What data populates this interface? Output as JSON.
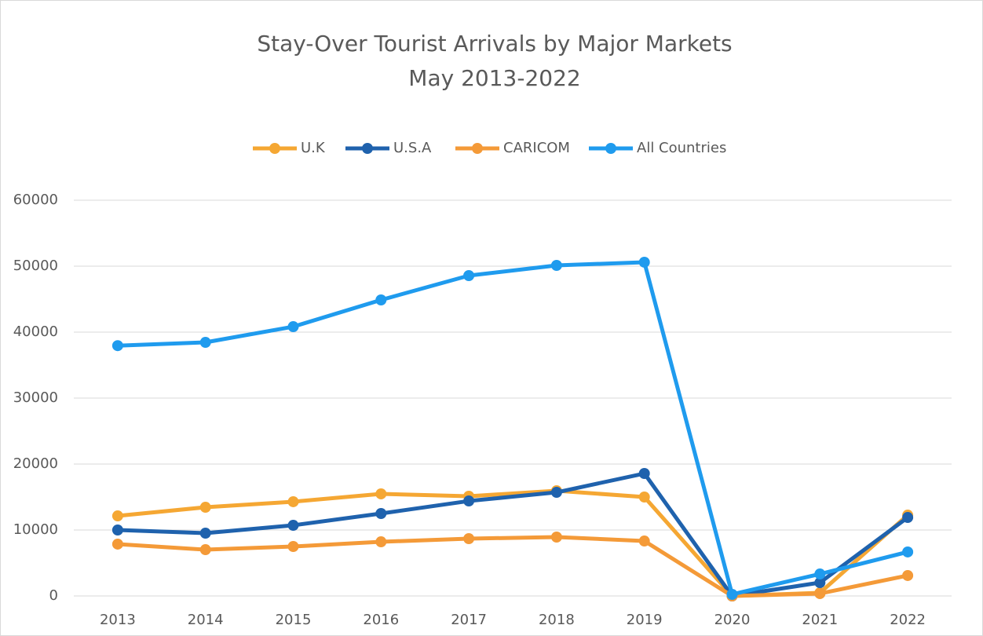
{
  "chart_data": {
    "type": "line",
    "title": "Stay-Over Tourist Arrivals by Major Markets",
    "subtitle": "May 2013-2022",
    "categories": [
      "2013",
      "2014",
      "2015",
      "2016",
      "2017",
      "2018",
      "2019",
      "2020",
      "2021",
      "2022"
    ],
    "series": [
      {
        "name": "U.K",
        "color": "#f5a733",
        "values": [
          12140,
          13450,
          14290,
          15480,
          15120,
          15950,
          15000,
          0,
          480,
          12260
        ]
      },
      {
        "name": "U.S.A",
        "color": "#1f62ad",
        "values": [
          10000,
          9520,
          10710,
          12500,
          14400,
          15710,
          18570,
          0,
          2020,
          11900
        ]
      },
      {
        "name": "CARICOM",
        "color": "#f49a38",
        "values": [
          7860,
          7020,
          7500,
          8210,
          8690,
          8930,
          8330,
          0,
          360,
          3100
        ]
      },
      {
        "name": "All Countries",
        "color": "#1f9bee",
        "values": [
          37950,
          38450,
          40830,
          44880,
          48570,
          50120,
          50600,
          240,
          3330,
          6670
        ]
      }
    ],
    "ylim": [
      0,
      60000
    ],
    "yticks": [
      0,
      10000,
      20000,
      30000,
      40000,
      50000,
      60000
    ],
    "grid": true,
    "legend": "top"
  }
}
